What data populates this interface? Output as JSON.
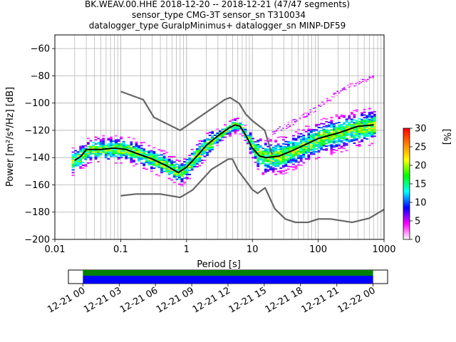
{
  "title_lines": [
    "BK.WEAV.00.HHE   2018-12-20 -- 2018-12-21  (47/47 segments)",
    "sensor_type CMG-3T sensor_sn T310034",
    "datalogger_type GuralpMinimus+ datalogger_sn MINP-DF59"
  ],
  "chart_data": [
    {
      "type": "heatmap",
      "xlabel": "Period [s]",
      "ylabel": "Power [m²/s⁴/Hz] [dB]",
      "x_scale": "log",
      "xlim": [
        0.01,
        1000
      ],
      "ylim": [
        -200,
        -50
      ],
      "x_ticks": [
        0.01,
        0.1,
        1,
        10,
        100,
        1000
      ],
      "x_tick_labels": [
        "0.01",
        "0.1",
        "1",
        "10",
        "100",
        "1000"
      ],
      "y_ticks": [
        -200,
        -180,
        -160,
        -140,
        -120,
        -100,
        -80,
        -60
      ],
      "y_tick_labels": [
        "−200",
        "−180",
        "−160",
        "−140",
        "−120",
        "−100",
        "−80",
        "−60"
      ],
      "grid": true,
      "colorbar": {
        "label": "[%]",
        "range": [
          0,
          30
        ],
        "ticks": [
          0,
          5,
          10,
          15,
          20,
          25,
          30
        ],
        "colormap": [
          "#ffffff",
          "#ff00ff",
          "#0000ff",
          "#00ffff",
          "#00ff00",
          "#ffff00",
          "#ff8000",
          "#ff0000"
        ]
      },
      "series": [
        {
          "role": "high-noise-model",
          "color": "#666666",
          "points": [
            [
              0.1,
              -91.5
            ],
            [
              0.22,
              -97.5
            ],
            [
              0.32,
              -110.5
            ],
            [
              0.8,
              -120
            ],
            [
              3.8,
              -97.5
            ],
            [
              4.6,
              -96
            ],
            [
              6.3,
              -100.2
            ],
            [
              7.9,
              -108
            ],
            [
              10,
              -113
            ],
            [
              15.4,
              -120
            ],
            [
              20,
              -138
            ]
          ]
        },
        {
          "role": "low-noise-model",
          "color": "#666666",
          "points": [
            [
              0.1,
              -168
            ],
            [
              0.17,
              -166.7
            ],
            [
              0.4,
              -166.7
            ],
            [
              0.8,
              -169.2
            ],
            [
              1.24,
              -163.7
            ],
            [
              2.4,
              -148.6
            ],
            [
              4.3,
              -141.1
            ],
            [
              5,
              -141.1
            ],
            [
              6,
              -149
            ],
            [
              10,
              -163.5
            ],
            [
              12,
              -166.2
            ],
            [
              15.6,
              -162.1
            ],
            [
              21.9,
              -177.5
            ],
            [
              31.6,
              -185
            ],
            [
              45,
              -187.5
            ],
            [
              70,
              -187.5
            ],
            [
              101,
              -185
            ],
            [
              154,
              -185
            ],
            [
              328,
              -187.5
            ],
            [
              600,
              -184.4
            ],
            [
              1000,
              -178
            ]
          ]
        },
        {
          "role": "mean",
          "color": "#000000",
          "points": [
            [
              0.02,
              -142
            ],
            [
              0.025,
              -139
            ],
            [
              0.03,
              -134
            ],
            [
              0.05,
              -134
            ],
            [
              0.08,
              -133
            ],
            [
              0.12,
              -134
            ],
            [
              0.2,
              -138
            ],
            [
              0.3,
              -141
            ],
            [
              0.5,
              -146
            ],
            [
              0.75,
              -151
            ],
            [
              1,
              -147
            ],
            [
              1.5,
              -138
            ],
            [
              2,
              -131
            ],
            [
              3,
              -124
            ],
            [
              4.5,
              -118
            ],
            [
              5.5,
              -116
            ],
            [
              6.5,
              -117
            ],
            [
              8,
              -124
            ],
            [
              10,
              -133
            ],
            [
              13,
              -139
            ],
            [
              16,
              -140
            ],
            [
              25,
              -139
            ],
            [
              40,
              -135
            ],
            [
              60,
              -131
            ],
            [
              100,
              -126
            ],
            [
              200,
              -122
            ],
            [
              400,
              -117
            ],
            [
              700,
              -116
            ]
          ]
        }
      ],
      "density_profile": [
        [
          0.018,
          -143
        ],
        [
          0.025,
          -139
        ],
        [
          0.035,
          -134
        ],
        [
          0.06,
          -134
        ],
        [
          0.1,
          -134
        ],
        [
          0.15,
          -136
        ],
        [
          0.25,
          -140
        ],
        [
          0.4,
          -144
        ],
        [
          0.6,
          -149
        ],
        [
          0.8,
          -151
        ],
        [
          1,
          -147
        ],
        [
          1.3,
          -140
        ],
        [
          2,
          -131
        ],
        [
          3,
          -124
        ],
        [
          4.5,
          -118
        ],
        [
          5.5,
          -116
        ],
        [
          6.5,
          -117
        ],
        [
          8,
          -125
        ],
        [
          10,
          -133
        ],
        [
          13,
          -139
        ],
        [
          17,
          -140
        ],
        [
          25,
          -139
        ],
        [
          40,
          -135
        ],
        [
          70,
          -130
        ],
        [
          120,
          -125
        ],
        [
          250,
          -121
        ],
        [
          450,
          -118
        ],
        [
          750,
          -116
        ]
      ],
      "upper_branch": [
        [
          20,
          -122
        ],
        [
          50,
          -112
        ],
        [
          100,
          -103
        ],
        [
          200,
          -92
        ],
        [
          350,
          -86
        ],
        [
          700,
          -80
        ]
      ]
    },
    {
      "type": "bar",
      "role": "data-availability",
      "x_tick_labels": [
        "12-21 00",
        "12-21 03",
        "12-21 06",
        "12-21 09",
        "12-21 12",
        "12-21 15",
        "12-21 18",
        "12-21 21",
        "12-22 00"
      ],
      "x_ticks_hours": [
        0,
        3,
        6,
        9,
        12,
        15,
        18,
        21,
        24
      ],
      "xlim_hours": [
        -1.2,
        25.2
      ],
      "coverage_hours": [
        0,
        24
      ],
      "colors": {
        "top_band": "#008000",
        "bottom_band": "#0000ff"
      }
    }
  ]
}
